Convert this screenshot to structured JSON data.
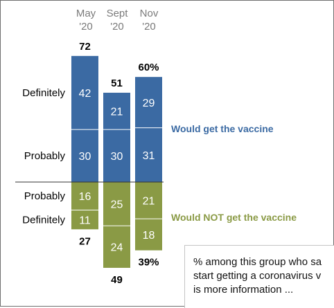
{
  "chart_data": {
    "type": "bar",
    "categories": [
      "May\n'20",
      "Sept\n'20",
      "Nov\n'20"
    ],
    "series": [
      {
        "name": "Definitely",
        "group": "Would get the vaccine",
        "values": [
          42,
          21,
          29
        ]
      },
      {
        "name": "Probably",
        "group": "Would get the vaccine",
        "values": [
          30,
          30,
          31
        ]
      },
      {
        "name": "Probably",
        "group": "Would NOT get the vaccine",
        "values": [
          16,
          25,
          21
        ]
      },
      {
        "name": "Definitely",
        "group": "Would NOT get the vaccine",
        "values": [
          11,
          24,
          18
        ]
      }
    ],
    "totals_above": [
      "72",
      "51",
      "60%"
    ],
    "totals_below": [
      "27",
      "49",
      "39%"
    ],
    "group_labels": {
      "positive": "Would get the vaccine",
      "negative": "Would NOT get the vaccine"
    },
    "row_labels": {
      "pos_top": "Definitely",
      "pos_bottom": "Probably",
      "neg_top": "Probably",
      "neg_bottom": "Definitely"
    },
    "colors": {
      "positive": "#3b6aa3",
      "negative": "#8a9a45"
    }
  },
  "note": {
    "text": "% among this group who sa\nstart getting a coronavirus v\nis more information ..."
  }
}
